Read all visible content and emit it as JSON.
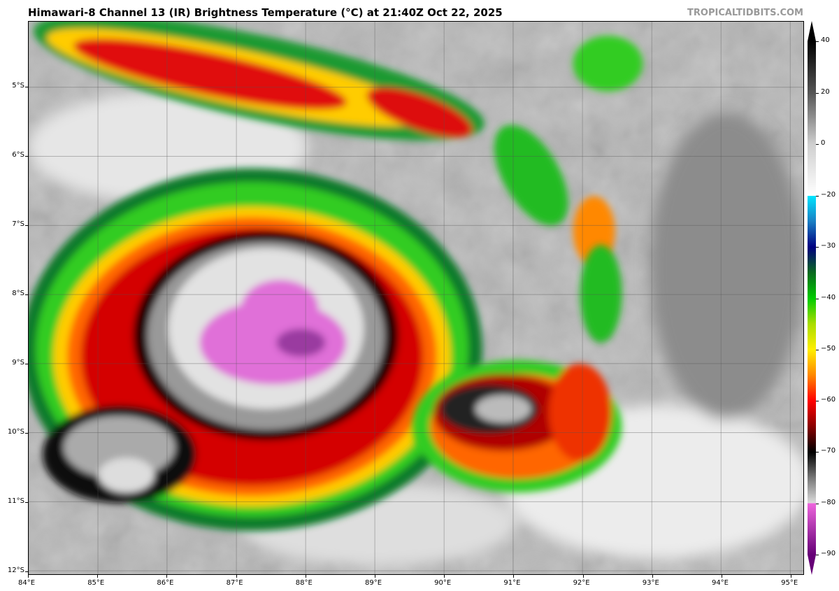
{
  "title": "Himawari-8 Channel 13 (IR) Brightness Temperature (°C) at 21:40Z Oct 22, 2025",
  "watermark": "TROPICALTIDBITS.COM",
  "map": {
    "lon_range": [
      84,
      95.19
    ],
    "lat_range": [
      -4.05,
      -12.05
    ],
    "grid": true,
    "x_ticks": [
      {
        "value": 84,
        "label": "84°E"
      },
      {
        "value": 85,
        "label": "85°E"
      },
      {
        "value": 86,
        "label": "86°E"
      },
      {
        "value": 87,
        "label": "87°E"
      },
      {
        "value": 88,
        "label": "88°E"
      },
      {
        "value": 89,
        "label": "89°E"
      },
      {
        "value": 90,
        "label": "90°E"
      },
      {
        "value": 91,
        "label": "91°E"
      },
      {
        "value": 92,
        "label": "92°E"
      },
      {
        "value": 93,
        "label": "93°E"
      },
      {
        "value": 94,
        "label": "94°E"
      },
      {
        "value": 95,
        "label": "95°E"
      }
    ],
    "y_ticks": [
      {
        "value": -5,
        "label": "5°S"
      },
      {
        "value": -6,
        "label": "6°S"
      },
      {
        "value": -7,
        "label": "7°S"
      },
      {
        "value": -8,
        "label": "8°S"
      },
      {
        "value": -9,
        "label": "9°S"
      },
      {
        "value": -10,
        "label": "10°S"
      },
      {
        "value": -11,
        "label": "11°S"
      },
      {
        "value": -12,
        "label": "12°S"
      }
    ]
  },
  "colorbar": {
    "range": [
      -90,
      40
    ],
    "ticks": [
      {
        "value": 40,
        "label": "40"
      },
      {
        "value": 20,
        "label": "20"
      },
      {
        "value": 0,
        "label": "0"
      },
      {
        "value": -20,
        "label": "−20"
      },
      {
        "value": -30,
        "label": "−30"
      },
      {
        "value": -40,
        "label": "−40"
      },
      {
        "value": -50,
        "label": "−50"
      },
      {
        "value": -60,
        "label": "−60"
      },
      {
        "value": -70,
        "label": "−70"
      },
      {
        "value": -80,
        "label": "−80"
      },
      {
        "value": -90,
        "label": "−90"
      }
    ],
    "stops": [
      {
        "value": 40,
        "color": "#000000"
      },
      {
        "value": 20,
        "color": "#555555"
      },
      {
        "value": 0,
        "color": "#cfcfcf"
      },
      {
        "value": -20,
        "color": "#ffffff"
      },
      {
        "value": -20,
        "color": "#00e5ff"
      },
      {
        "value": -25,
        "color": "#1a7fc4"
      },
      {
        "value": -30,
        "color": "#000080"
      },
      {
        "value": -35,
        "color": "#0a6a20"
      },
      {
        "value": -40,
        "color": "#00cc00"
      },
      {
        "value": -45,
        "color": "#aadd00"
      },
      {
        "value": -50,
        "color": "#ffee00"
      },
      {
        "value": -55,
        "color": "#ff8800"
      },
      {
        "value": -60,
        "color": "#ff0000"
      },
      {
        "value": -65,
        "color": "#880000"
      },
      {
        "value": -70,
        "color": "#000000"
      },
      {
        "value": -75,
        "color": "#777777"
      },
      {
        "value": -80,
        "color": "#dddddd"
      },
      {
        "value": -80,
        "color": "#ee66dd"
      },
      {
        "value": -90,
        "color": "#660077"
      }
    ]
  }
}
